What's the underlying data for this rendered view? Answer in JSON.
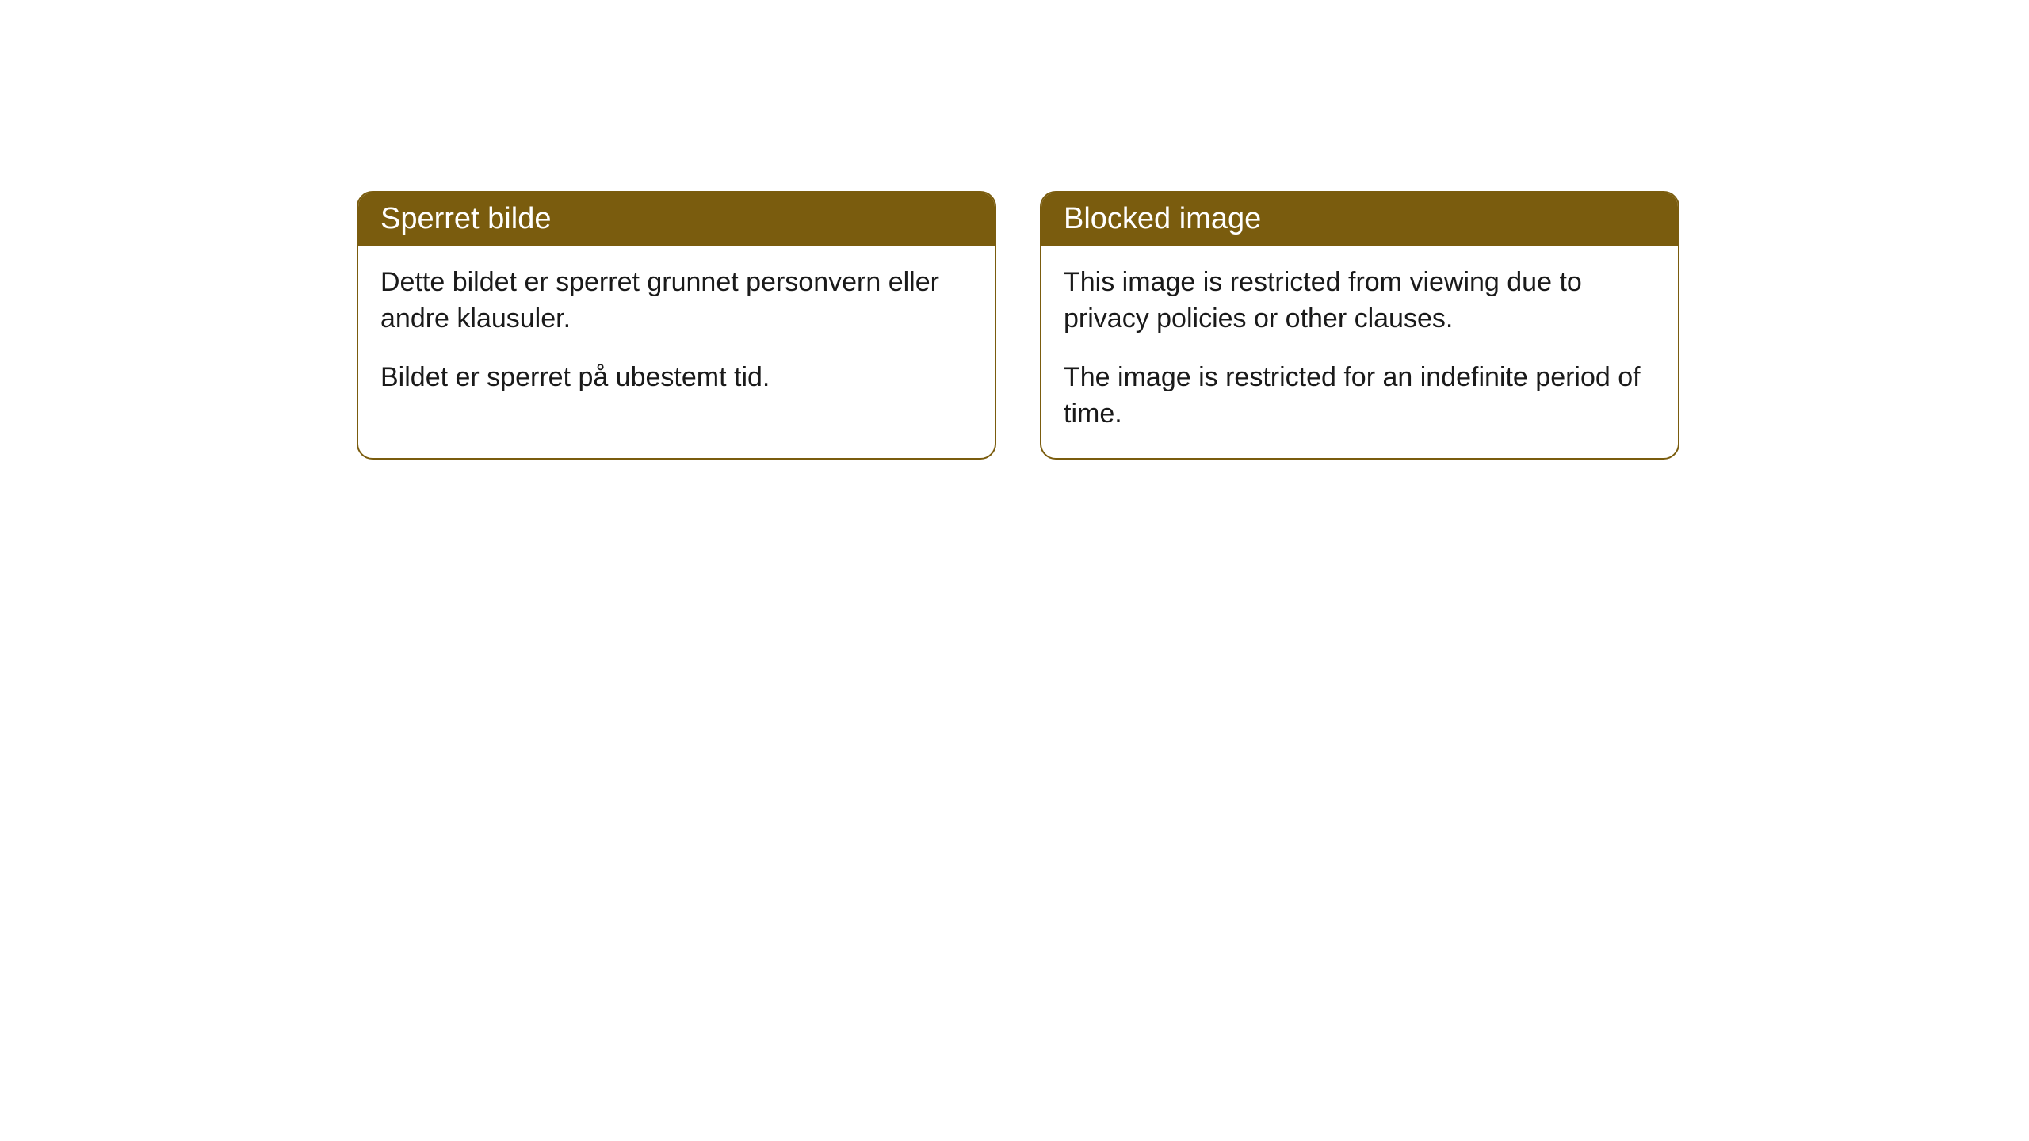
{
  "notices": [
    {
      "title": "Sperret bilde",
      "paragraph1": "Dette bildet er sperret grunnet personvern eller andre klausuler.",
      "paragraph2": "Bildet er sperret på ubestemt tid."
    },
    {
      "title": "Blocked image",
      "paragraph1": "This image is restricted from viewing due to privacy policies or other clauses.",
      "paragraph2": "The image is restricted for an indefinite period of time."
    }
  ],
  "styling": {
    "header_bg_color": "#7a5c0e",
    "header_text_color": "#ffffff",
    "border_color": "#7a5c0e",
    "body_bg_color": "#ffffff",
    "body_text_color": "#1a1a1a",
    "border_radius": 20,
    "title_fontsize": 38,
    "body_fontsize": 34
  }
}
